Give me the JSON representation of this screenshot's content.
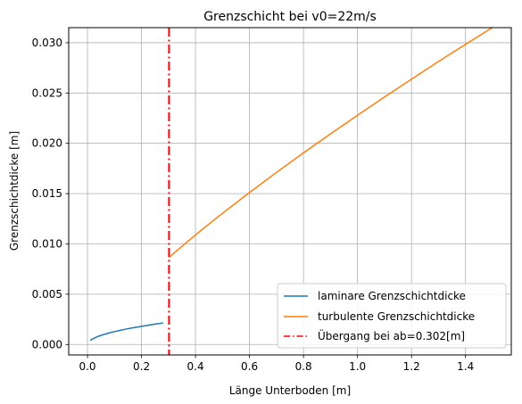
{
  "chart_data": {
    "type": "line",
    "title": "Grenzschicht bei v0=22m/s",
    "xlabel": "Länge Unterboden [m]",
    "ylabel": "Grenzschichtdicke [m]",
    "xlim": [
      -0.0695,
      1.5695
    ],
    "ylim": [
      -0.00104,
      0.0315
    ],
    "xticks": [
      0.0,
      0.2,
      0.4,
      0.6,
      0.8,
      1.0,
      1.2,
      1.4
    ],
    "xtick_labels": [
      "0.0",
      "0.2",
      "0.4",
      "0.6",
      "0.8",
      "1.0",
      "1.2",
      "1.4"
    ],
    "yticks": [
      0.0,
      0.005,
      0.01,
      0.015,
      0.02,
      0.025,
      0.03
    ],
    "ytick_labels": [
      "0.000",
      "0.005",
      "0.010",
      "0.015",
      "0.020",
      "0.025",
      "0.030"
    ],
    "grid": true,
    "legend_position": "lower-right",
    "series": [
      {
        "name": "laminare Grenzschichtdicke",
        "color": "#1f77b4",
        "style": "solid",
        "x": [
          0.01,
          0.02,
          0.04,
          0.06,
          0.08,
          0.1,
          0.12,
          0.14,
          0.16,
          0.18,
          0.2,
          0.22,
          0.24,
          0.26,
          0.28
        ],
        "y": [
          0.0004,
          0.00057,
          0.00081,
          0.00099,
          0.00114,
          0.00128,
          0.0014,
          0.00151,
          0.00162,
          0.00171,
          0.00181,
          0.00189,
          0.00198,
          0.00206,
          0.00214
        ]
      },
      {
        "name": "turbulente Grenzschichtdicke",
        "color": "#ff7f0e",
        "style": "solid",
        "x": [
          0.302,
          0.35,
          0.4,
          0.45,
          0.5,
          0.6,
          0.7,
          0.8,
          0.9,
          1.0,
          1.1,
          1.2,
          1.3,
          1.4,
          1.5
        ],
        "y": [
          0.00865,
          0.00977,
          0.01089,
          0.01198,
          0.01304,
          0.01511,
          0.01711,
          0.01905,
          0.02094,
          0.02279,
          0.0246,
          0.02638,
          0.02813,
          0.02984,
          0.03153
        ]
      },
      {
        "name": "Übergang bei ab=0.302[m]",
        "color": "#ff0000",
        "style": "dashdot",
        "vline_x": 0.302
      }
    ]
  }
}
